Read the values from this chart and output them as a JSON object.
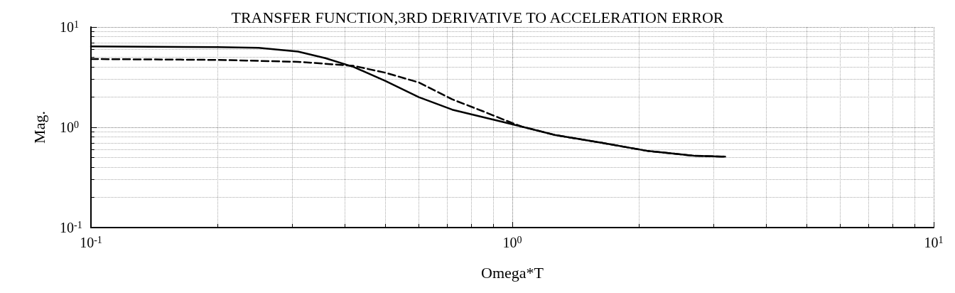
{
  "chart_data": {
    "type": "line",
    "title": "TRANSFER FUNCTION,3RD DERIVATIVE TO ACCELERATION ERROR",
    "xlabel": "Omega*T",
    "ylabel": "Mag.",
    "log": "xy",
    "grid": true,
    "xlim": [
      0.1,
      10
    ],
    "ylim": [
      0.1,
      10
    ],
    "xticks": [
      {
        "value": 0.1,
        "label": "10$^{-1}$"
      },
      {
        "value": 1,
        "label": "10$^{0}$"
      },
      {
        "value": 10,
        "label": "10$^{1}$"
      }
    ],
    "yticks": [
      {
        "value": 0.1,
        "label": "10$^{-1}$"
      },
      {
        "value": 1,
        "label": "10$^{0}$"
      },
      {
        "value": 10,
        "label": "10$^{1}$"
      }
    ],
    "series": [
      {
        "color": "#000000",
        "line_style": "solid",
        "x": [
          0.1,
          0.2,
          0.25,
          0.31,
          0.36,
          0.42,
          0.5,
          0.6,
          0.72,
          0.95,
          1.26,
          1.63,
          2.1,
          2.7,
          3.2
        ],
        "values": [
          6.4,
          6.3,
          6.2,
          5.7,
          4.9,
          4.0,
          2.9,
          2.0,
          1.5,
          1.13,
          0.84,
          0.7,
          0.58,
          0.52,
          0.51
        ]
      },
      {
        "color": "#000000",
        "line_style": "dashed",
        "x": [
          0.1,
          0.2,
          0.31,
          0.42,
          0.5,
          0.6,
          0.72,
          0.85,
          0.95,
          1.05,
          1.26,
          1.63,
          2.1,
          2.7,
          3.2
        ],
        "values": [
          4.8,
          4.7,
          4.5,
          4.1,
          3.5,
          2.8,
          1.9,
          1.45,
          1.2,
          1.02,
          0.84,
          0.7,
          0.58,
          0.52,
          0.51
        ]
      }
    ]
  }
}
